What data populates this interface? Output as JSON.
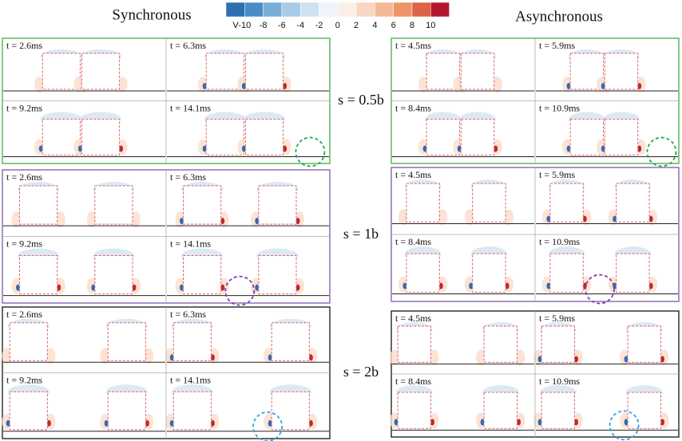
{
  "columns": [
    {
      "title": "Synchronous",
      "times": [
        "t = 2.6ms",
        "t = 6.3ms",
        "t = 9.2ms",
        "t = 14.1ms"
      ]
    },
    {
      "title": "Asynchronous",
      "times": [
        "t = 4.5ms",
        "t = 5.9ms",
        "t = 8.4ms",
        "t = 10.9ms"
      ]
    }
  ],
  "rows": [
    "s = 0.5b",
    "s = 1b",
    "s = 2b"
  ],
  "colorbar": {
    "unit": "V",
    "ticks": [
      -10,
      -8,
      -6,
      -4,
      -2,
      0,
      2,
      4,
      6,
      8,
      10
    ]
  }
}
